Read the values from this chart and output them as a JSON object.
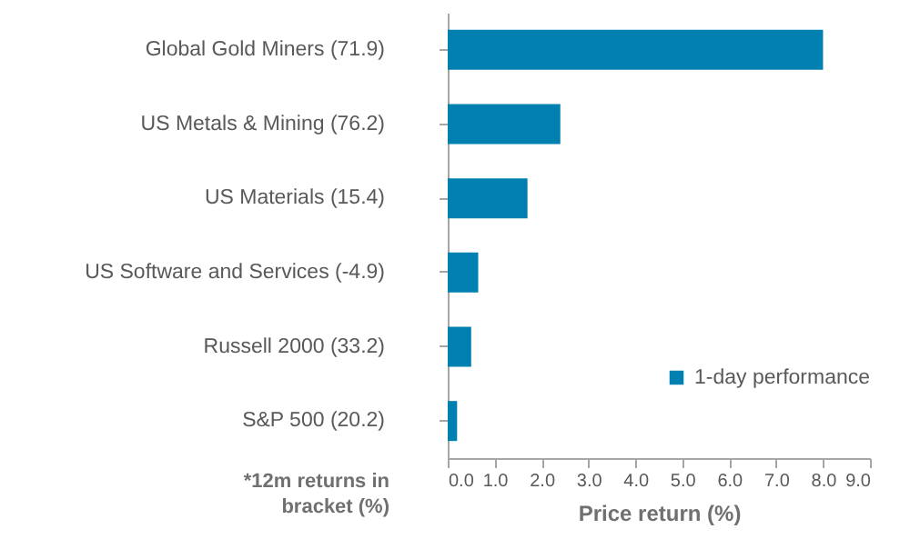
{
  "chart_data": {
    "type": "bar",
    "orientation": "horizontal",
    "categories": [
      "Global Gold Miners (71.9)",
      "US Metals & Mining (76.2)",
      "US Materials (15.4)",
      "US Software and Services (-4.9)",
      "Russell 2000 (33.2)",
      "S&P 500 (20.2)"
    ],
    "series": [
      {
        "name": "1-day performance",
        "color": "#0080b0",
        "values": [
          8.0,
          2.4,
          1.7,
          0.65,
          0.5,
          0.2
        ]
      }
    ],
    "xlabel": "Price return (%)",
    "xlim": [
      0,
      9
    ],
    "xticks": [
      {
        "value": 0,
        "label": "0.0"
      },
      {
        "value": 1,
        "label": "1.0"
      },
      {
        "value": 2,
        "label": "2.0"
      },
      {
        "value": 3,
        "label": "3.0"
      },
      {
        "value": 4,
        "label": "4.0"
      },
      {
        "value": 5,
        "label": "5.0"
      },
      {
        "value": 6,
        "label": "6.0"
      },
      {
        "value": 7,
        "label": "7.0"
      },
      {
        "value": 8,
        "label": "8.0"
      },
      {
        "value": 9,
        "label": "9.0"
      }
    ],
    "annotations": [
      "*12m returns in bracket (%)"
    ],
    "legend": "bottom right",
    "grid": false
  }
}
